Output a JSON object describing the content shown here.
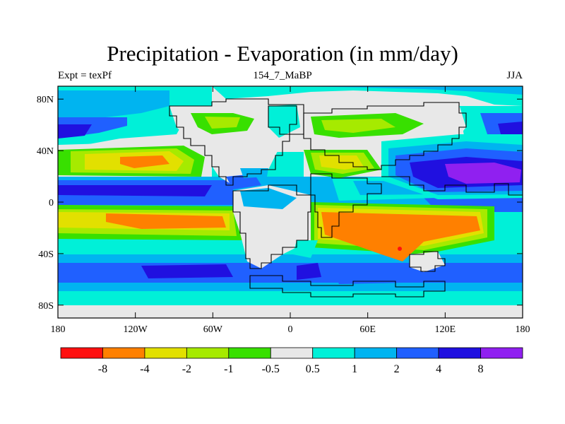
{
  "title": "Precipitation - Evaporation (in mm/day)",
  "subtitle_left": "Expt = texPf",
  "subtitle_center": "154_7_MaBP",
  "subtitle_right": "JJA",
  "x_ticks": [
    "180",
    "120W",
    "60W",
    "0",
    "60E",
    "120E",
    "180"
  ],
  "y_ticks": [
    "80N",
    "40N",
    "0",
    "40S",
    "80S"
  ],
  "colors": {
    "background": "#ffffff",
    "frame": "#000000",
    "coastline": "#000000"
  },
  "colorbar": {
    "colors": [
      "#ff1010",
      "#ff8000",
      "#e2e000",
      "#a6ea00",
      "#38e000",
      "#e8e8e8",
      "#00f0d8",
      "#00b4f0",
      "#2060ff",
      "#2010e0",
      "#9020f0"
    ],
    "labels": [
      "-8",
      "-4",
      "-2",
      "-1",
      "-0.5",
      "0.5",
      "1",
      "2",
      "4",
      "8"
    ]
  }
}
